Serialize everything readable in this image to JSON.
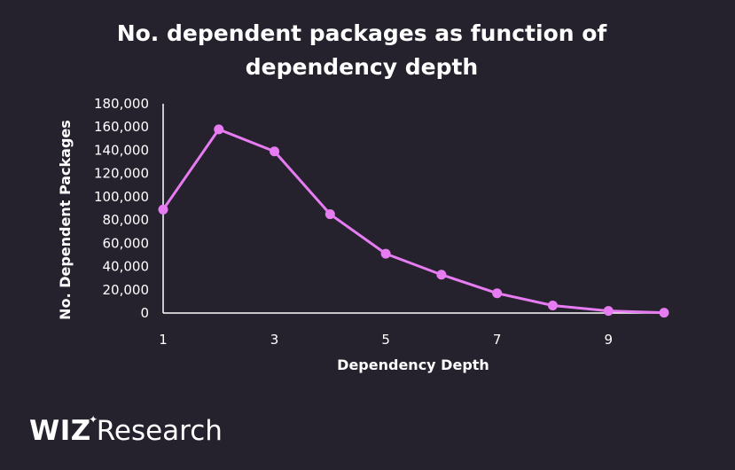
{
  "chart_data": {
    "type": "line",
    "title": "No. dependent packages as function of dependency depth",
    "title_lines": [
      "No. dependent packages as function of",
      "dependency depth"
    ],
    "xlabel": "Dependency Depth",
    "ylabel": "No. Dependent Packages",
    "x": [
      1,
      2,
      3,
      4,
      5,
      6,
      7,
      8,
      9,
      10
    ],
    "xlim": [
      1,
      10
    ],
    "x_ticks": [
      1,
      3,
      5,
      7,
      9
    ],
    "x_tick_labels": [
      "1",
      "3",
      "5",
      "7",
      "9"
    ],
    "ylim": [
      0,
      180000
    ],
    "y_ticks": [
      0,
      20000,
      40000,
      60000,
      80000,
      100000,
      120000,
      140000,
      160000,
      180000
    ],
    "y_tick_labels": [
      "0",
      "20,000",
      "40,000",
      "60,000",
      "80,000",
      "100,000",
      "120,000",
      "140,000",
      "160,000",
      "180,000"
    ],
    "series": [
      {
        "values": [
          89000,
          158000,
          139000,
          85000,
          51000,
          33000,
          17000,
          6500,
          1800,
          300
        ]
      }
    ],
    "grid": false,
    "legend": "none",
    "colors": {
      "background": "#25222e",
      "line": "#e77cf2",
      "marker": "#e77cf2",
      "axis": "#ffffff",
      "text": "#ffffff"
    }
  },
  "branding": {
    "logo_word": "WIZ",
    "logo_suffix": "Research"
  }
}
